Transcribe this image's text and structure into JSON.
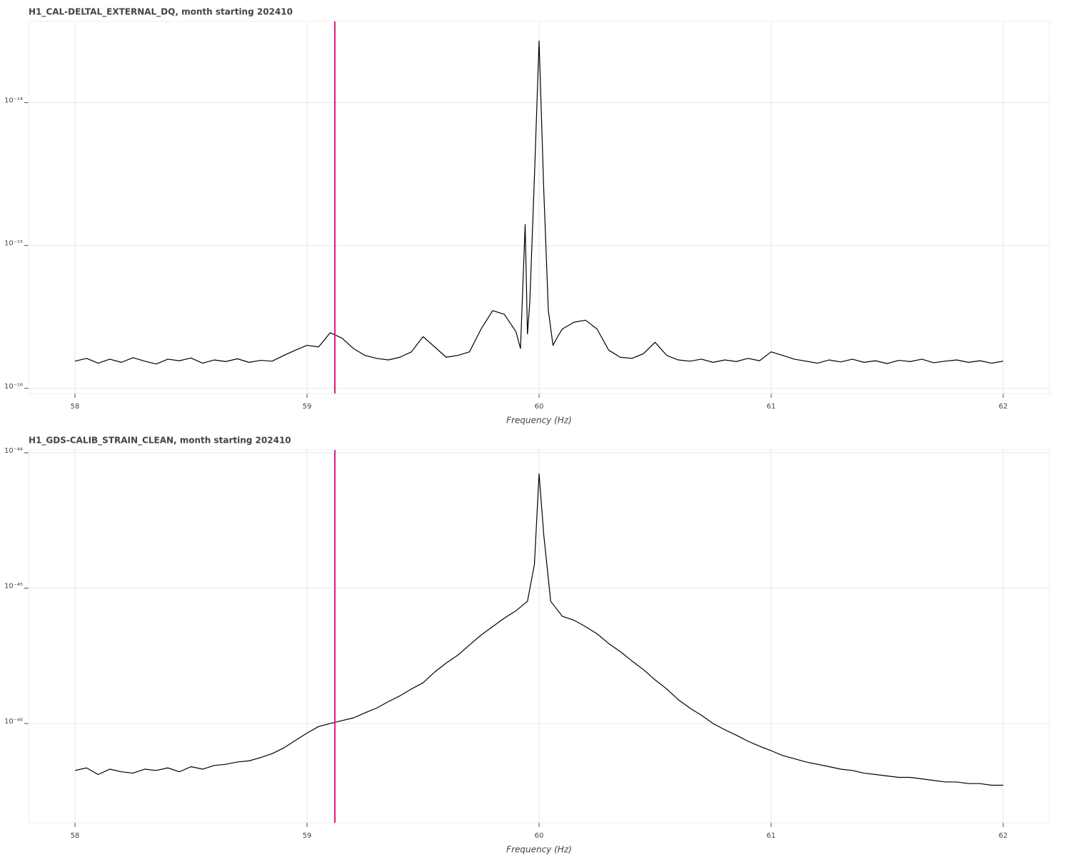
{
  "chart_data": [
    {
      "type": "line",
      "title": "H1_CAL-DELTAL_EXTERNAL_DQ, month starting 202410",
      "xlabel": "Frequency (Hz)",
      "log_y": true,
      "grid": true,
      "xlim": [
        57.8,
        62.2
      ],
      "ylim": [
        9.2e-17,
        3.7e-14
      ],
      "xticks": [
        58,
        59,
        60,
        61,
        62
      ],
      "yticks": [
        {
          "value": 1e-16,
          "label": "10⁻¹⁶"
        },
        {
          "value": 1e-15,
          "label": "10⁻¹⁵"
        },
        {
          "value": 1e-14,
          "label": "10⁻¹⁴"
        }
      ],
      "markers": [
        {
          "x": 59.12,
          "color": "#e31a7c"
        }
      ],
      "x": [
        58.0,
        58.05,
        58.1,
        58.15,
        58.2,
        58.25,
        58.3,
        58.35,
        58.4,
        58.45,
        58.5,
        58.55,
        58.6,
        58.65,
        58.7,
        58.75,
        58.8,
        58.85,
        58.9,
        58.95,
        59.0,
        59.05,
        59.1,
        59.15,
        59.2,
        59.25,
        59.3,
        59.35,
        59.4,
        59.45,
        59.5,
        59.55,
        59.6,
        59.65,
        59.7,
        59.75,
        59.8,
        59.85,
        59.9,
        59.92,
        59.94,
        59.95,
        59.96,
        59.98,
        60.0,
        60.02,
        60.04,
        60.06,
        60.08,
        60.1,
        60.15,
        60.2,
        60.25,
        60.3,
        60.35,
        60.4,
        60.45,
        60.5,
        60.55,
        60.6,
        60.65,
        60.7,
        60.75,
        60.8,
        60.85,
        60.9,
        60.95,
        61.0,
        61.05,
        61.1,
        61.15,
        61.2,
        61.25,
        61.3,
        61.35,
        61.4,
        61.45,
        61.5,
        61.55,
        61.6,
        61.65,
        61.7,
        61.75,
        61.8,
        61.85,
        61.9,
        61.95,
        62.0
      ],
      "series": [
        {
          "color": "#000000",
          "values": [
            1.55e-16,
            1.62e-16,
            1.5e-16,
            1.6e-16,
            1.52e-16,
            1.64e-16,
            1.55e-16,
            1.48e-16,
            1.6e-16,
            1.56e-16,
            1.63e-16,
            1.5e-16,
            1.58e-16,
            1.54e-16,
            1.61e-16,
            1.52e-16,
            1.57e-16,
            1.55e-16,
            1.7e-16,
            1.85e-16,
            2e-16,
            1.95e-16,
            2.45e-16,
            2.25e-16,
            1.9e-16,
            1.7e-16,
            1.62e-16,
            1.58e-16,
            1.65e-16,
            1.8e-16,
            2.3e-16,
            1.95e-16,
            1.65e-16,
            1.7e-16,
            1.8e-16,
            2.6e-16,
            3.5e-16,
            3.3e-16,
            2.5e-16,
            1.9e-16,
            1.4e-15,
            2.4e-16,
            4e-16,
            3e-15,
            2.7e-14,
            2.5e-15,
            3.5e-16,
            2e-16,
            2.3e-16,
            2.6e-16,
            2.9e-16,
            3e-16,
            2.6e-16,
            1.85e-16,
            1.65e-16,
            1.62e-16,
            1.75e-16,
            2.1e-16,
            1.7e-16,
            1.58e-16,
            1.55e-16,
            1.6e-16,
            1.52e-16,
            1.58e-16,
            1.54e-16,
            1.62e-16,
            1.56e-16,
            1.8e-16,
            1.7e-16,
            1.6e-16,
            1.55e-16,
            1.5e-16,
            1.58e-16,
            1.53e-16,
            1.6e-16,
            1.52e-16,
            1.56e-16,
            1.49e-16,
            1.57e-16,
            1.54e-16,
            1.6e-16,
            1.51e-16,
            1.55e-16,
            1.58e-16,
            1.52e-16,
            1.56e-16,
            1.5e-16,
            1.55e-16
          ]
        }
      ]
    },
    {
      "type": "line",
      "title": "H1_GDS-CALIB_STRAIN_CLEAN, month starting 202410",
      "xlabel": "Frequency (Hz)",
      "log_y": true,
      "grid": true,
      "xlim": [
        57.8,
        62.2
      ],
      "ylim": [
        1.85e-47,
        1.05e-44
      ],
      "xticks": [
        58,
        59,
        60,
        61,
        62
      ],
      "yticks": [
        {
          "value": 1e-46,
          "label": "10⁻⁴⁶"
        },
        {
          "value": 1e-45,
          "label": "10⁻⁴⁵"
        },
        {
          "value": 1e-44,
          "label": "10⁻⁴⁴"
        }
      ],
      "markers": [
        {
          "x": 59.12,
          "color": "#e31a7c"
        }
      ],
      "x": [
        58.0,
        58.05,
        58.1,
        58.15,
        58.2,
        58.25,
        58.3,
        58.35,
        58.4,
        58.45,
        58.5,
        58.55,
        58.6,
        58.65,
        58.7,
        58.75,
        58.8,
        58.85,
        58.9,
        58.95,
        59.0,
        59.05,
        59.1,
        59.15,
        59.2,
        59.25,
        59.3,
        59.35,
        59.4,
        59.45,
        59.5,
        59.55,
        59.6,
        59.65,
        59.7,
        59.75,
        59.8,
        59.85,
        59.9,
        59.95,
        59.98,
        60.0,
        60.02,
        60.05,
        60.1,
        60.15,
        60.2,
        60.25,
        60.3,
        60.35,
        60.4,
        60.45,
        60.5,
        60.55,
        60.6,
        60.65,
        60.7,
        60.75,
        60.8,
        60.85,
        60.9,
        60.95,
        61.0,
        61.05,
        61.1,
        61.15,
        61.2,
        61.25,
        61.3,
        61.35,
        61.4,
        61.45,
        61.5,
        61.55,
        61.6,
        61.65,
        61.7,
        61.75,
        61.8,
        61.85,
        61.9,
        61.95,
        62.0
      ],
      "series": [
        {
          "color": "#000000",
          "values": [
            4.5e-47,
            4.7e-47,
            4.2e-47,
            4.6e-47,
            4.4e-47,
            4.3e-47,
            4.6e-47,
            4.5e-47,
            4.7e-47,
            4.4e-47,
            4.8e-47,
            4.6e-47,
            4.9e-47,
            5e-47,
            5.2e-47,
            5.3e-47,
            5.6e-47,
            6e-47,
            6.6e-47,
            7.5e-47,
            8.5e-47,
            9.5e-47,
            1e-46,
            1.05e-46,
            1.1e-46,
            1.2e-46,
            1.3e-46,
            1.45e-46,
            1.6e-46,
            1.8e-46,
            2e-46,
            2.4e-46,
            2.8e-46,
            3.2e-46,
            3.8e-46,
            4.5e-46,
            5.2e-46,
            6e-46,
            6.8e-46,
            8e-46,
            1.5e-45,
            7e-45,
            2.5e-45,
            8e-46,
            6.2e-46,
            5.8e-46,
            5.2e-46,
            4.6e-46,
            3.9e-46,
            3.4e-46,
            2.9e-46,
            2.5e-46,
            2.1e-46,
            1.8e-46,
            1.5e-46,
            1.3e-46,
            1.15e-46,
            1e-46,
            9e-47,
            8.2e-47,
            7.4e-47,
            6.8e-47,
            6.3e-47,
            5.8e-47,
            5.5e-47,
            5.2e-47,
            5e-47,
            4.8e-47,
            4.6e-47,
            4.5e-47,
            4.3e-47,
            4.2e-47,
            4.1e-47,
            4e-47,
            4e-47,
            3.9e-47,
            3.8e-47,
            3.7e-47,
            3.7e-47,
            3.6e-47,
            3.6e-47,
            3.5e-47,
            3.5e-47
          ]
        }
      ]
    }
  ]
}
